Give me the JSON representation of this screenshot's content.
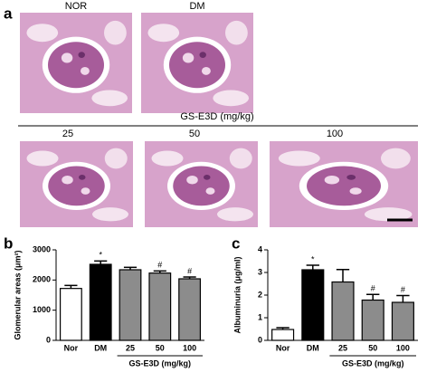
{
  "figure": {
    "panel_labels": [
      "a",
      "b",
      "c"
    ],
    "image_labels": [
      "NOR",
      "DM"
    ],
    "group_label": "GS-E3D (mg/kg)",
    "dose_labels": [
      "25",
      "50",
      "100"
    ]
  },
  "chart_data": [
    {
      "type": "bar",
      "ylabel": "Glomerular areas (μm²)",
      "categories": [
        "Nor",
        "DM",
        "25",
        "50",
        "100"
      ],
      "values": [
        1720,
        2520,
        2340,
        2230,
        2040
      ],
      "errors": [
        100,
        110,
        80,
        70,
        60
      ],
      "colors": [
        "#ffffff",
        "#000000",
        "#8c8c8c",
        "#8c8c8c",
        "#8c8c8c"
      ],
      "bar_marks": [
        null,
        "*",
        null,
        "#",
        "#"
      ],
      "group_label": "GS-E3D (mg/kg)",
      "ylim": [
        0,
        3000
      ],
      "yticks": [
        0,
        1000,
        2000,
        3000
      ]
    },
    {
      "type": "bar",
      "ylabel": "Albuminuria (μg/ml)",
      "categories": [
        "Nor",
        "DM",
        "25",
        "50",
        "100"
      ],
      "values": [
        0.48,
        3.12,
        2.58,
        1.78,
        1.68
      ],
      "errors": [
        0.08,
        0.2,
        0.55,
        0.25,
        0.3
      ],
      "colors": [
        "#ffffff",
        "#000000",
        "#8c8c8c",
        "#8c8c8c",
        "#8c8c8c"
      ],
      "bar_marks": [
        null,
        "*",
        null,
        "#",
        "#"
      ],
      "group_label": "GS-E3D (mg/kg)",
      "ylim": [
        0,
        4
      ],
      "yticks": [
        0,
        1,
        2,
        3,
        4
      ]
    }
  ]
}
